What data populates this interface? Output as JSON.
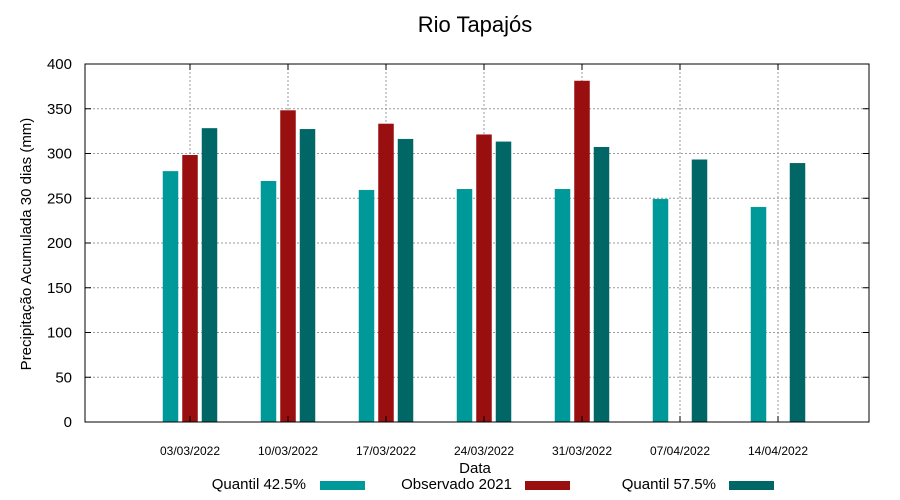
{
  "chart_data": {
    "type": "bar",
    "title": "Rio Tapajós",
    "xlabel": "Data",
    "ylabel": "Precipitação Acumulada 30 dias (mm)",
    "ylim": [
      0,
      400
    ],
    "yticks": [
      0,
      50,
      100,
      150,
      200,
      250,
      300,
      350,
      400
    ],
    "grid": true,
    "legend_position": "bottom",
    "categories": [
      "03/03/2022",
      "10/03/2022",
      "17/03/2022",
      "24/03/2022",
      "31/03/2022",
      "07/04/2022",
      "14/04/2022"
    ],
    "series": [
      {
        "name": "Quantil 42.5%",
        "color": "#009999",
        "values": [
          280,
          269,
          259,
          260,
          260,
          249,
          240
        ]
      },
      {
        "name": "Observado 2021",
        "color": "#990f0f",
        "values": [
          298,
          348,
          333,
          321,
          381,
          null,
          null
        ]
      },
      {
        "name": "Quantil 57.5%",
        "color": "#006666",
        "values": [
          328,
          327,
          316,
          313,
          307,
          293,
          289
        ]
      }
    ]
  }
}
